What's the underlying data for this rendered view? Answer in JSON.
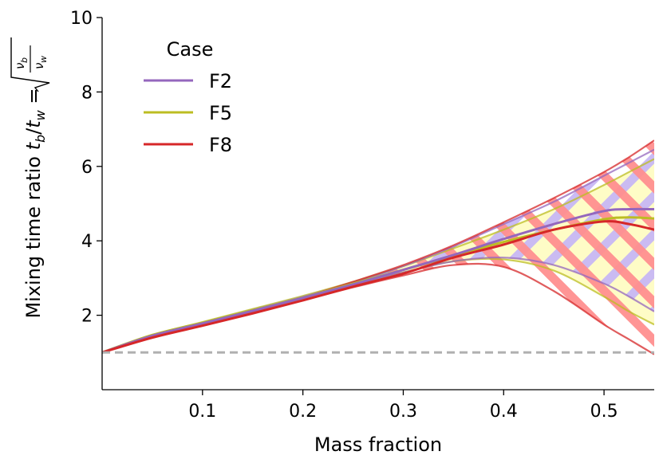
{
  "chart_data": {
    "type": "line",
    "xlabel": "Mass fraction",
    "ylabel": "Mixing time ratio t_b/t_w = sqrt(ν_b/ν_w)",
    "xlim": [
      0.0,
      0.55
    ],
    "ylim": [
      0,
      10
    ],
    "xticks": [
      0.1,
      0.2,
      0.3,
      0.4,
      0.5
    ],
    "xtick_labels": [
      "0.1",
      "0.2",
      "0.3",
      "0.4",
      "0.5"
    ],
    "yticks": [
      2,
      4,
      6,
      8,
      10
    ],
    "ytick_labels": [
      "2",
      "4",
      "6",
      "8",
      "10"
    ],
    "grid": false,
    "legend": {
      "title": "Case",
      "position": "top-left"
    },
    "reference_line": {
      "y": 1.0,
      "color": "#b0b0b0",
      "style": "dashed"
    },
    "series": [
      {
        "name": "F2",
        "color": "#9467bd",
        "band_color": "#c9b6f3",
        "x": [
          0.0,
          0.05,
          0.1,
          0.15,
          0.2,
          0.25,
          0.3,
          0.35,
          0.4,
          0.45,
          0.5,
          0.525,
          0.55
        ],
        "upper": [
          1.0,
          1.45,
          1.8,
          2.15,
          2.5,
          2.88,
          3.32,
          3.85,
          4.45,
          5.05,
          5.75,
          6.1,
          6.45
        ],
        "mid": [
          1.0,
          1.45,
          1.78,
          2.12,
          2.47,
          2.83,
          3.22,
          3.62,
          4.05,
          4.45,
          4.8,
          4.85,
          4.85
        ],
        "lower": [
          1.0,
          1.45,
          1.78,
          2.1,
          2.45,
          2.8,
          3.15,
          3.45,
          3.55,
          3.35,
          2.85,
          2.5,
          2.1
        ]
      },
      {
        "name": "F5",
        "color": "#bcbd22",
        "band_color": "#fefcc0",
        "x": [
          0.0,
          0.05,
          0.1,
          0.15,
          0.2,
          0.25,
          0.3,
          0.35,
          0.4,
          0.45,
          0.5,
          0.525,
          0.55
        ],
        "upper": [
          1.0,
          1.47,
          1.82,
          2.17,
          2.52,
          2.9,
          3.32,
          3.8,
          4.3,
          4.85,
          5.5,
          5.85,
          6.2
        ],
        "mid": [
          1.0,
          1.47,
          1.8,
          2.14,
          2.48,
          2.85,
          3.22,
          3.6,
          3.97,
          4.3,
          4.58,
          4.63,
          4.6
        ],
        "lower": [
          1.0,
          1.47,
          1.8,
          2.12,
          2.45,
          2.8,
          3.15,
          3.45,
          3.5,
          3.2,
          2.5,
          2.1,
          1.75
        ]
      },
      {
        "name": "F8",
        "color": "#d62728",
        "band_color": "#ff9a9a",
        "x": [
          0.0,
          0.05,
          0.1,
          0.15,
          0.2,
          0.25,
          0.3,
          0.35,
          0.4,
          0.45,
          0.5,
          0.525,
          0.55
        ],
        "upper": [
          1.0,
          1.4,
          1.75,
          2.1,
          2.48,
          2.9,
          3.35,
          3.88,
          4.5,
          5.15,
          5.85,
          6.25,
          6.7
        ],
        "mid": [
          1.0,
          1.4,
          1.72,
          2.05,
          2.4,
          2.77,
          3.12,
          3.55,
          3.9,
          4.3,
          4.52,
          4.45,
          4.3
        ],
        "lower": [
          1.0,
          1.4,
          1.72,
          2.05,
          2.4,
          2.75,
          3.07,
          3.35,
          3.3,
          2.65,
          1.75,
          1.35,
          0.95
        ]
      }
    ]
  }
}
